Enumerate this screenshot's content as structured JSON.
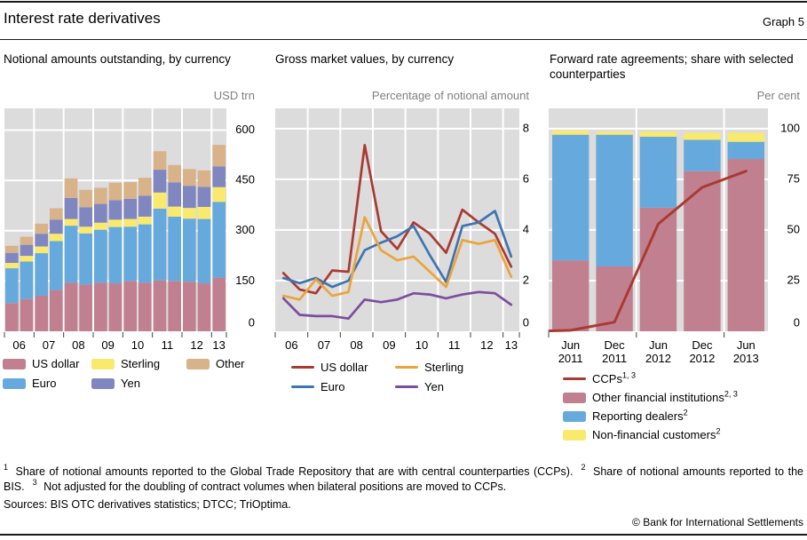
{
  "header": {
    "title": "Interest rate derivatives",
    "graph_label": "Graph 5"
  },
  "panels": [
    {
      "title": "Notional amounts outstanding, by currency",
      "unit": "USD trn"
    },
    {
      "title": "Gross market values, by currency",
      "unit": "Percentage of notional amount"
    },
    {
      "title": "Forward rate agreements; share with selected counterparties",
      "unit": "Per cent"
    }
  ],
  "colors": {
    "plot_background": "#dcdcdc",
    "gridline": "#ffffff",
    "tick": "#404040",
    "unit_text": "#7f7f7f",
    "bar_us_dollar": "#c1808f",
    "bar_euro": "#66a9dc",
    "bar_sterling": "#f9e96d",
    "bar_yen": "#8087c0",
    "bar_other": "#d8b289",
    "line_us_dollar": "#a93a32",
    "line_euro": "#3e74b2",
    "line_sterling": "#eba43c",
    "line_yen": "#7c4e9c",
    "line_ccps": "#a93a32"
  },
  "chart_data": [
    {
      "type": "bar",
      "stacked": true,
      "title": "Notional amounts outstanding, by currency",
      "ylabel": "USD trn",
      "categories": [
        "2006 H1",
        "2006 H2",
        "2007 H1",
        "2007 H2",
        "2008 H1",
        "2008 H2",
        "2009 H1",
        "2009 H2",
        "2010 H1",
        "2010 H2",
        "2011 H1",
        "2011 H2",
        "2012 H1",
        "2012 H2",
        "2013 H1"
      ],
      "x_tick_labels": [
        "06",
        "07",
        "08",
        "09",
        "10",
        "11",
        "12",
        "13"
      ],
      "series": [
        {
          "name": "US dollar",
          "color": "#c1808f",
          "values": [
            84,
            96,
            106,
            123,
            145,
            140,
            145,
            143,
            150,
            145,
            152,
            150,
            148,
            143,
            160
          ]
        },
        {
          "name": "Euro",
          "color": "#66a9dc",
          "values": [
            104,
            112,
            127,
            146,
            170,
            152,
            158,
            168,
            162,
            174,
            214,
            192,
            188,
            192,
            226
          ]
        },
        {
          "name": "Sterling",
          "color": "#f9e96d",
          "values": [
            16,
            17,
            20,
            22,
            20,
            20,
            21,
            22,
            23,
            23,
            48,
            30,
            32,
            36,
            44
          ]
        },
        {
          "name": "Yen",
          "color": "#8087c0",
          "values": [
            30,
            33,
            38,
            42,
            63,
            58,
            56,
            58,
            60,
            62,
            68,
            72,
            66,
            60,
            62
          ]
        },
        {
          "name": "Other",
          "color": "#d8b289",
          "values": [
            21,
            24,
            30,
            34,
            58,
            52,
            48,
            52,
            50,
            54,
            55,
            52,
            50,
            49,
            64
          ]
        }
      ],
      "yticks": [
        0,
        150,
        300,
        450,
        600
      ],
      "ylim": [
        0,
        665
      ],
      "grid": "horizontal + year boundaries",
      "legend_position": "below"
    },
    {
      "type": "line",
      "title": "Gross market values, by currency",
      "ylabel": "Percentage of notional amount",
      "categories": [
        "2006 H1",
        "2006 H2",
        "2007 H1",
        "2007 H2",
        "2008 H1",
        "2008 H2",
        "2009 H1",
        "2009 H2",
        "2010 H1",
        "2010 H2",
        "2011 H1",
        "2011 H2",
        "2012 H1",
        "2012 H2",
        "2013 H1"
      ],
      "x_tick_labels": [
        "06",
        "07",
        "08",
        "09",
        "10",
        "11",
        "12",
        "13"
      ],
      "series": [
        {
          "name": "US dollar",
          "color": "#a93a32",
          "values": [
            2.3,
            1.65,
            1.5,
            2.4,
            2.35,
            7.35,
            3.95,
            3.25,
            4.3,
            3.85,
            3.1,
            4.8,
            4.3,
            3.85,
            2.55
          ]
        },
        {
          "name": "Euro",
          "color": "#3e74b2",
          "values": [
            2.1,
            1.9,
            2.1,
            1.75,
            2.0,
            3.2,
            3.5,
            3.75,
            4.15,
            3.0,
            1.95,
            4.15,
            4.3,
            4.75,
            2.95
          ]
        },
        {
          "name": "Sterling",
          "color": "#eba43c",
          "values": [
            1.4,
            1.25,
            2.05,
            1.4,
            1.55,
            4.5,
            3.2,
            2.8,
            2.95,
            2.35,
            1.75,
            3.6,
            3.45,
            3.6,
            2.15
          ]
        },
        {
          "name": "Yen",
          "color": "#7c4e9c",
          "values": [
            1.3,
            0.65,
            0.6,
            0.6,
            0.5,
            1.25,
            1.15,
            1.25,
            1.5,
            1.45,
            1.3,
            1.45,
            1.55,
            1.5,
            1.05
          ]
        }
      ],
      "yticks": [
        0,
        2,
        4,
        6,
        8
      ],
      "ylim": [
        0,
        8.8
      ],
      "grid": "horizontal + year boundaries",
      "legend_position": "below"
    },
    {
      "type": "bar-line",
      "stacked": true,
      "title": "Forward rate agreements; share with selected counterparties",
      "ylabel": "Per cent",
      "categories": [
        "Jun 2011",
        "Dec 2011",
        "Jun 2012",
        "Dec 2012",
        "Jun 2013"
      ],
      "bar_series": [
        {
          "name": "Other financial institutions",
          "color": "#c1808f",
          "values": [
            35,
            32,
            61,
            79,
            85
          ]
        },
        {
          "name": "Reporting dealers",
          "color": "#66a9dc",
          "values": [
            62,
            65,
            35,
            15.5,
            8.5
          ]
        },
        {
          "name": "Non-financial customers",
          "color": "#f9e96d",
          "values": [
            2,
            1.5,
            2.5,
            3.5,
            4.5
          ]
        }
      ],
      "line_series": [
        {
          "name": "CCPs",
          "color": "#a93a32",
          "values": [
            0.5,
            4.5,
            53,
            71,
            79
          ]
        }
      ],
      "yticks": [
        0,
        25,
        50,
        75,
        100
      ],
      "ylim": [
        0,
        110
      ],
      "grid": "horizontal + year boundaries",
      "legend_position": "below"
    }
  ],
  "legends": {
    "panel1": {
      "items": [
        {
          "label": "US dollar",
          "swatch": "box",
          "color": "#c1808f"
        },
        {
          "label": "Sterling",
          "swatch": "box",
          "color": "#f9e96d"
        },
        {
          "label": "Other",
          "swatch": "box",
          "color": "#d8b289"
        },
        {
          "label": "Euro",
          "swatch": "box",
          "color": "#66a9dc"
        },
        {
          "label": "Yen",
          "swatch": "box",
          "color": "#8087c0"
        }
      ]
    },
    "panel2": {
      "items": [
        {
          "label": "US dollar",
          "swatch": "line",
          "color": "#a93a32"
        },
        {
          "label": "Sterling",
          "swatch": "line",
          "color": "#eba43c"
        },
        {
          "label": "Euro",
          "swatch": "line",
          "color": "#3e74b2"
        },
        {
          "label": "Yen",
          "swatch": "line",
          "color": "#7c4e9c"
        }
      ]
    },
    "panel3": {
      "items": [
        {
          "label": "CCPs",
          "sup": "1, 3",
          "swatch": "line",
          "color": "#a93a32"
        },
        {
          "label": "Other financial institutions",
          "sup": "2, 3",
          "swatch": "box",
          "color": "#c1808f"
        },
        {
          "label": "Reporting dealers",
          "sup": "2",
          "swatch": "box",
          "color": "#66a9dc"
        },
        {
          "label": "Non-financial customers",
          "sup": "2",
          "swatch": "box",
          "color": "#f9e96d"
        }
      ]
    }
  },
  "footnote_parts": [
    {
      "sup": "1",
      "text": "Share of notional amounts reported to the Global Trade Repository that are with central counterparties (CCPs)."
    },
    {
      "sup": "2",
      "text": "Share of notional amounts reported to the BIS."
    },
    {
      "sup": "3",
      "text": "Not adjusted for the doubling of contract volumes when bilateral positions are moved to CCPs."
    }
  ],
  "sources_line": "Sources: BIS OTC derivatives statistics; DTCC; TriOptima.",
  "copyright_line": "© Bank for International Settlements"
}
